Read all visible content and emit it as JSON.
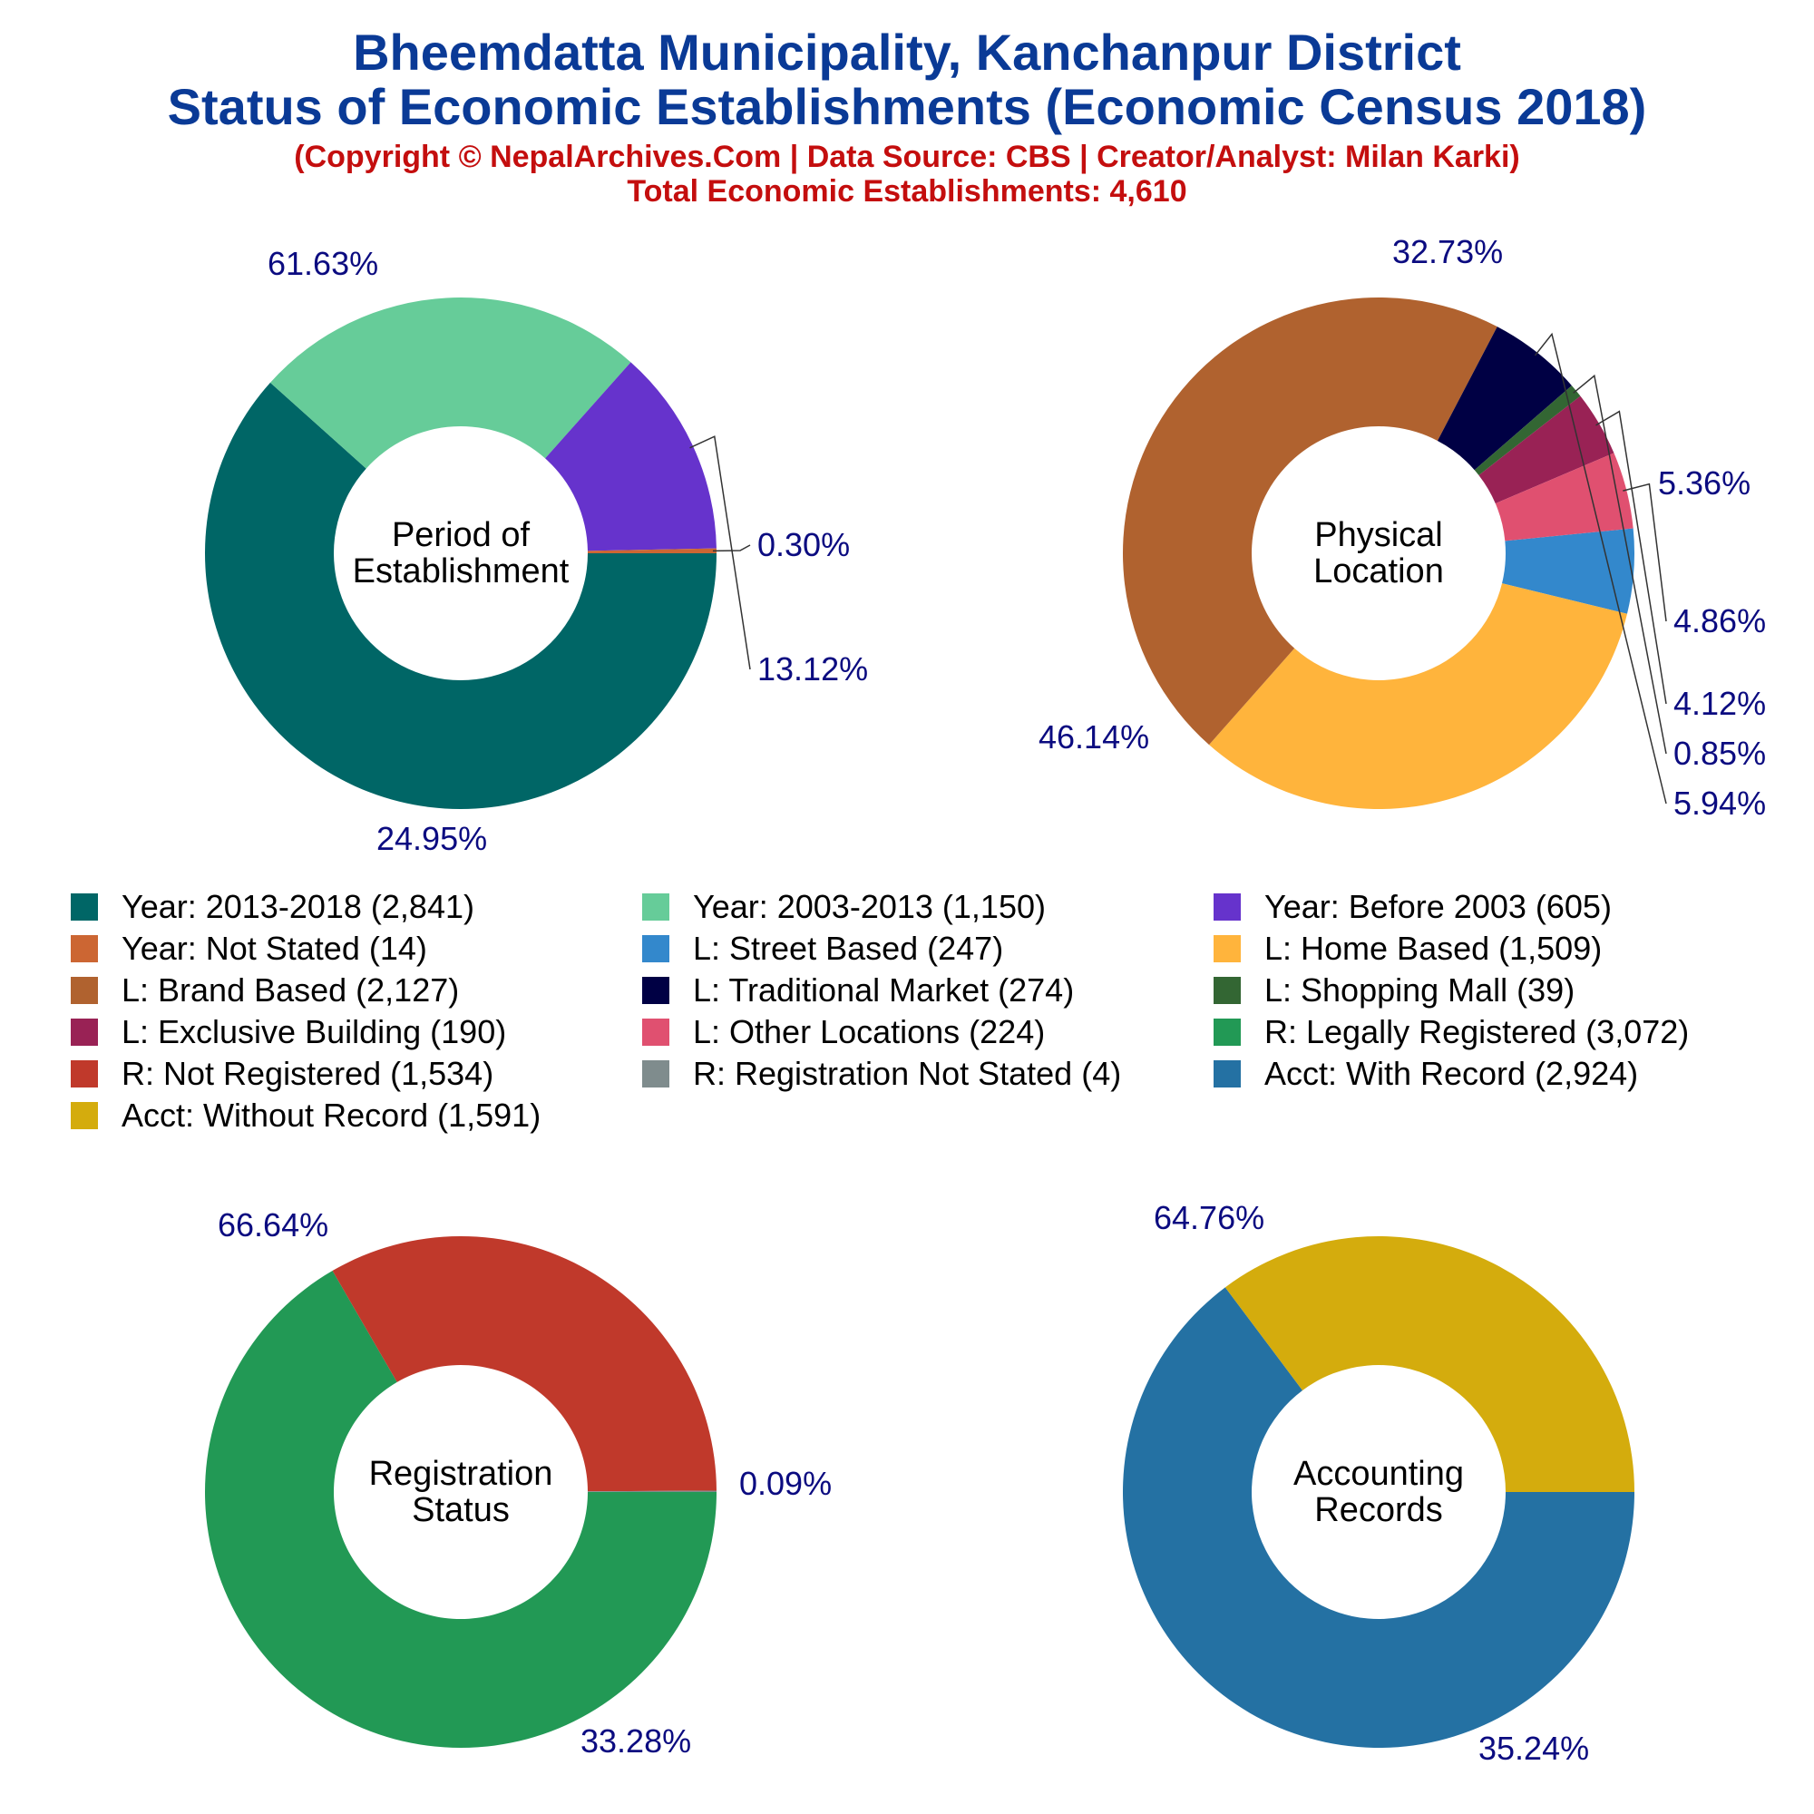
{
  "header": {
    "title_lines": [
      "Bheemdatta Municipality, Kanchanpur District",
      "Status of Economic Establishments (Economic Census 2018)"
    ],
    "subtitle_lines": [
      "(Copyright © NepalArchives.Com | Data Source: CBS | Creator/Analyst: Milan Karki)",
      "Total Economic Establishments: 4,610"
    ]
  },
  "chart_data": [
    {
      "type": "pie",
      "title": "Period of Establishment",
      "center_label_lines": [
        "Period of",
        "Establishment"
      ],
      "categories": [
        "Year: 2013-2018",
        "Year: 2003-2013",
        "Year: Before 2003",
        "Year: Not Stated"
      ],
      "values": [
        2841,
        1150,
        605,
        14
      ],
      "percent_labels": [
        "61.63%",
        "24.95%",
        "13.12%",
        "0.30%"
      ],
      "colors": [
        "#006666",
        "#66cc99",
        "#6633cc",
        "#cc6633"
      ]
    },
    {
      "type": "pie",
      "title": "Physical Location",
      "center_label_lines": [
        "Physical",
        "Location"
      ],
      "categories": [
        "L: Street Based",
        "L: Home Based",
        "L: Brand Based",
        "L: Traditional Market",
        "L: Shopping Mall",
        "L: Exclusive Building",
        "L: Other Locations"
      ],
      "values": [
        247,
        1509,
        2127,
        274,
        39,
        190,
        224
      ],
      "percent_labels": [
        "5.36%",
        "32.73%",
        "46.14%",
        "5.94%",
        "0.85%",
        "4.12%",
        "4.86%"
      ],
      "colors": [
        "#3388cc",
        "#ffb43c",
        "#b0622f",
        "#000044",
        "#336633",
        "#992255",
        "#e05070"
      ]
    },
    {
      "type": "pie",
      "title": "Registration Status",
      "center_label_lines": [
        "Registration",
        "Status"
      ],
      "categories": [
        "R: Legally Registered",
        "R: Not Registered",
        "R: Registration Not Stated"
      ],
      "values": [
        3072,
        1534,
        4
      ],
      "percent_labels": [
        "66.64%",
        "33.28%",
        "0.09%"
      ],
      "colors": [
        "#229955",
        "#c0392b",
        "#7f8c8d"
      ]
    },
    {
      "type": "pie",
      "title": "Accounting Records",
      "center_label_lines": [
        "Accounting",
        "Records"
      ],
      "categories": [
        "Acct: With Record",
        "Acct: Without Record"
      ],
      "values": [
        2924,
        1591
      ],
      "percent_labels": [
        "64.76%",
        "35.24%"
      ],
      "colors": [
        "#2471a3",
        "#d4ac0d"
      ]
    }
  ],
  "legend": [
    {
      "label": "Year: 2013-2018 (2,841)",
      "color": "#006666"
    },
    {
      "label": "Year: 2003-2013 (1,150)",
      "color": "#66cc99"
    },
    {
      "label": "Year: Before 2003 (605)",
      "color": "#6633cc"
    },
    {
      "label": "Year: Not Stated (14)",
      "color": "#cc6633"
    },
    {
      "label": "L: Street Based (247)",
      "color": "#3388cc"
    },
    {
      "label": "L: Home Based (1,509)",
      "color": "#ffb43c"
    },
    {
      "label": "L: Brand Based (2,127)",
      "color": "#b0622f"
    },
    {
      "label": "L: Traditional Market (274)",
      "color": "#000044"
    },
    {
      "label": "L: Shopping Mall (39)",
      "color": "#336633"
    },
    {
      "label": "L: Exclusive Building (190)",
      "color": "#992255"
    },
    {
      "label": "L: Other Locations (224)",
      "color": "#e05070"
    },
    {
      "label": "R: Legally Registered (3,072)",
      "color": "#229955"
    },
    {
      "label": "R: Not Registered (1,534)",
      "color": "#c0392b"
    },
    {
      "label": "R: Registration Not Stated (4)",
      "color": "#7f8c8d"
    },
    {
      "label": "Acct: With Record (2,924)",
      "color": "#2471a3"
    },
    {
      "label": "Acct: Without Record (1,591)",
      "color": "#d4ac0d"
    }
  ],
  "colors": {
    "title": "#0a3a96",
    "subtitle": "#c40e0e",
    "percent_label": "#0b0b80",
    "center_label": "#000000"
  }
}
